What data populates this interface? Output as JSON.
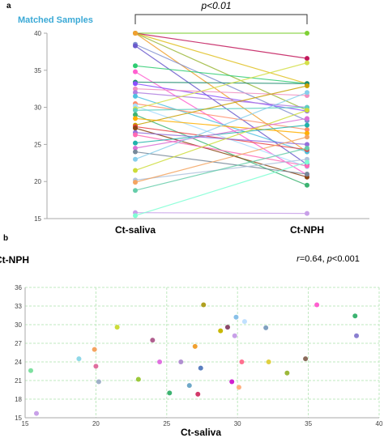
{
  "panel_a": {
    "tag": "a",
    "title": "Matched Samples",
    "title_color": "#3aa9d6",
    "significance": "p<0.01"
  },
  "panel_b": {
    "tag": "b",
    "stat_r": "r",
    "stat_r_value": "=0.64, ",
    "stat_p": "p",
    "stat_p_value": "<0.001"
  },
  "chart_data": [
    {
      "type": "line",
      "categories": [
        "Ct-saliva",
        "Ct-NPH"
      ],
      "ylim": [
        15,
        40
      ],
      "yticks": [
        15,
        20,
        25,
        30,
        35,
        40
      ],
      "series": [
        {
          "values": [
            40.0,
            40.0
          ],
          "color": "#7fd035"
        },
        {
          "values": [
            40.0,
            36.6
          ],
          "color": "#c2185b"
        },
        {
          "values": [
            40.0,
            33.2
          ],
          "color": "#e0c020"
        },
        {
          "values": [
            40.0,
            29.6
          ],
          "color": "#9cb83a"
        },
        {
          "values": [
            40.0,
            24.0
          ],
          "color": "#f0a030"
        },
        {
          "values": [
            38.5,
            28.2
          ],
          "color": "#7f8fcf"
        },
        {
          "values": [
            38.3,
            22.3
          ],
          "color": "#6a5acd"
        },
        {
          "values": [
            35.6,
            33.2
          ],
          "color": "#2ecc71"
        },
        {
          "values": [
            34.8,
            20.9
          ],
          "color": "#ff5fd0"
        },
        {
          "values": [
            33.4,
            33.2
          ],
          "color": "#1e8b6e"
        },
        {
          "values": [
            33.2,
            29.5
          ],
          "color": "#8a4fff"
        },
        {
          "values": [
            32.5,
            31.6
          ],
          "color": "#f08fc0"
        },
        {
          "values": [
            32.0,
            30.0
          ],
          "color": "#b07fe0"
        },
        {
          "values": [
            31.5,
            24.0
          ],
          "color": "#4fc0e0"
        },
        {
          "values": [
            30.5,
            27.0
          ],
          "color": "#ff8c69"
        },
        {
          "values": [
            30.2,
            22.0
          ],
          "color": "#aaddff"
        },
        {
          "values": [
            29.8,
            36.0
          ],
          "color": "#d4e04a"
        },
        {
          "values": [
            29.6,
            30.0
          ],
          "color": "#5fd0c0"
        },
        {
          "values": [
            29.0,
            19.5
          ],
          "color": "#3cb371"
        },
        {
          "values": [
            28.5,
            26.5
          ],
          "color": "#ffb000"
        },
        {
          "values": [
            27.6,
            32.9
          ],
          "color": "#c8a000"
        },
        {
          "values": [
            27.4,
            24.3
          ],
          "color": "#e84040"
        },
        {
          "values": [
            27.2,
            20.6
          ],
          "color": "#8b4513"
        },
        {
          "values": [
            26.6,
            25.0
          ],
          "color": "#9370db"
        },
        {
          "values": [
            26.3,
            22.1
          ],
          "color": "#ff69b4"
        },
        {
          "values": [
            25.2,
            27.6
          ],
          "color": "#20b2aa"
        },
        {
          "values": [
            24.5,
            28.5
          ],
          "color": "#da70d6"
        },
        {
          "values": [
            24.0,
            21.0
          ],
          "color": "#778899"
        },
        {
          "values": [
            23.0,
            32.0
          ],
          "color": "#87ceeb"
        },
        {
          "values": [
            21.5,
            29.6
          ],
          "color": "#cddc39"
        },
        {
          "values": [
            20.2,
            23.0
          ],
          "color": "#b0c4de"
        },
        {
          "values": [
            19.9,
            26.0
          ],
          "color": "#f4a460"
        },
        {
          "values": [
            18.8,
            24.5
          ],
          "color": "#66cdaa"
        },
        {
          "values": [
            15.8,
            15.7
          ],
          "color": "#c8a0e8"
        },
        {
          "values": [
            15.4,
            22.6
          ],
          "color": "#7fffd4"
        }
      ]
    },
    {
      "type": "scatter",
      "xlabel": "Ct-saliva",
      "ylabel": "Ct-NPH",
      "xlim": [
        15,
        40
      ],
      "ylim": [
        15,
        36
      ],
      "xticks": [
        15,
        20,
        25,
        30,
        35,
        40
      ],
      "yticks": [
        15,
        18,
        21,
        24,
        27,
        30,
        33,
        36
      ],
      "grid": true,
      "points": [
        {
          "x": 15.4,
          "y": 22.6,
          "color": "#7ee0a0"
        },
        {
          "x": 15.8,
          "y": 15.7,
          "color": "#c8a0e8"
        },
        {
          "x": 18.8,
          "y": 24.5,
          "color": "#8fd8e8"
        },
        {
          "x": 19.9,
          "y": 26.0,
          "color": "#f4a460"
        },
        {
          "x": 20.0,
          "y": 23.3,
          "color": "#e06f9f"
        },
        {
          "x": 20.2,
          "y": 20.8,
          "color": "#9fb0c8"
        },
        {
          "x": 21.5,
          "y": 29.6,
          "color": "#cddc39"
        },
        {
          "x": 23.0,
          "y": 21.2,
          "color": "#9cc83a"
        },
        {
          "x": 24.0,
          "y": 27.5,
          "color": "#b05f8f"
        },
        {
          "x": 24.5,
          "y": 24.0,
          "color": "#e070e0"
        },
        {
          "x": 25.2,
          "y": 19.0,
          "color": "#3cb371"
        },
        {
          "x": 26.0,
          "y": 24.0,
          "color": "#b08fd0"
        },
        {
          "x": 26.6,
          "y": 20.2,
          "color": "#6fa8c8"
        },
        {
          "x": 27.0,
          "y": 26.5,
          "color": "#f0a030"
        },
        {
          "x": 27.2,
          "y": 18.8,
          "color": "#d23a6a"
        },
        {
          "x": 27.4,
          "y": 23.0,
          "color": "#5a7fc0"
        },
        {
          "x": 27.6,
          "y": 33.2,
          "color": "#b0a020"
        },
        {
          "x": 28.8,
          "y": 29.0,
          "color": "#c8b800"
        },
        {
          "x": 29.3,
          "y": 29.6,
          "color": "#8b4a6a"
        },
        {
          "x": 29.6,
          "y": 20.8,
          "color": "#d020d0"
        },
        {
          "x": 29.8,
          "y": 28.2,
          "color": "#c8a0e8"
        },
        {
          "x": 29.9,
          "y": 31.2,
          "color": "#88c0e8"
        },
        {
          "x": 30.1,
          "y": 19.9,
          "color": "#ffb080"
        },
        {
          "x": 30.3,
          "y": 24.0,
          "color": "#ff6f8f"
        },
        {
          "x": 30.5,
          "y": 30.5,
          "color": "#c0e0ff"
        },
        {
          "x": 32.0,
          "y": 29.5,
          "color": "#7fa0c0"
        },
        {
          "x": 32.2,
          "y": 24.0,
          "color": "#e0d040"
        },
        {
          "x": 33.5,
          "y": 22.2,
          "color": "#9cb83a"
        },
        {
          "x": 34.8,
          "y": 24.5,
          "color": "#8a6a5a"
        },
        {
          "x": 35.6,
          "y": 33.2,
          "color": "#ff5fd0"
        },
        {
          "x": 38.3,
          "y": 31.4,
          "color": "#3cb371"
        },
        {
          "x": 38.4,
          "y": 28.2,
          "color": "#8a7fd0"
        }
      ]
    }
  ]
}
